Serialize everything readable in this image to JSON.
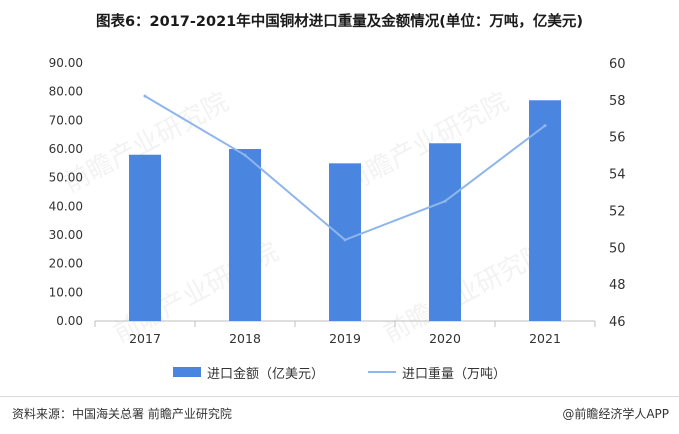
{
  "title": "图表6：2017-2021年中国铜材进口重量及金额情况(单位：万吨，亿美元)",
  "source": "资料来源：中国海关总署 前瞻产业研究院",
  "brand": "@前瞻经济学人APP",
  "watermark": "前瞻产业研究院",
  "colors": {
    "bar": "#4a86e0",
    "line": "#8fb6ea",
    "grid": "#e6e6e6",
    "axis_text": "#333333"
  },
  "chart_data": {
    "type": "bar+line",
    "categories": [
      "2017",
      "2018",
      "2019",
      "2020",
      "2021"
    ],
    "series": [
      {
        "name": "进口金额（亿美元）",
        "type": "bar",
        "axis": "left",
        "values": [
          58.0,
          60.0,
          55.0,
          62.0,
          77.0
        ]
      },
      {
        "name": "进口重量（万吨）",
        "type": "line",
        "axis": "right",
        "values": [
          58.2,
          55.0,
          50.4,
          52.5,
          56.6
        ]
      }
    ],
    "y_left": {
      "ticks": [
        "0.00",
        "10.00",
        "20.00",
        "30.00",
        "40.00",
        "50.00",
        "60.00",
        "70.00",
        "80.00",
        "90.00"
      ],
      "ylim": [
        0,
        90
      ]
    },
    "y_right": {
      "ticks": [
        "46",
        "48",
        "50",
        "52",
        "54",
        "56",
        "58",
        "60"
      ],
      "ylim": [
        46,
        60
      ]
    },
    "grid": false,
    "legend_position": "bottom"
  }
}
